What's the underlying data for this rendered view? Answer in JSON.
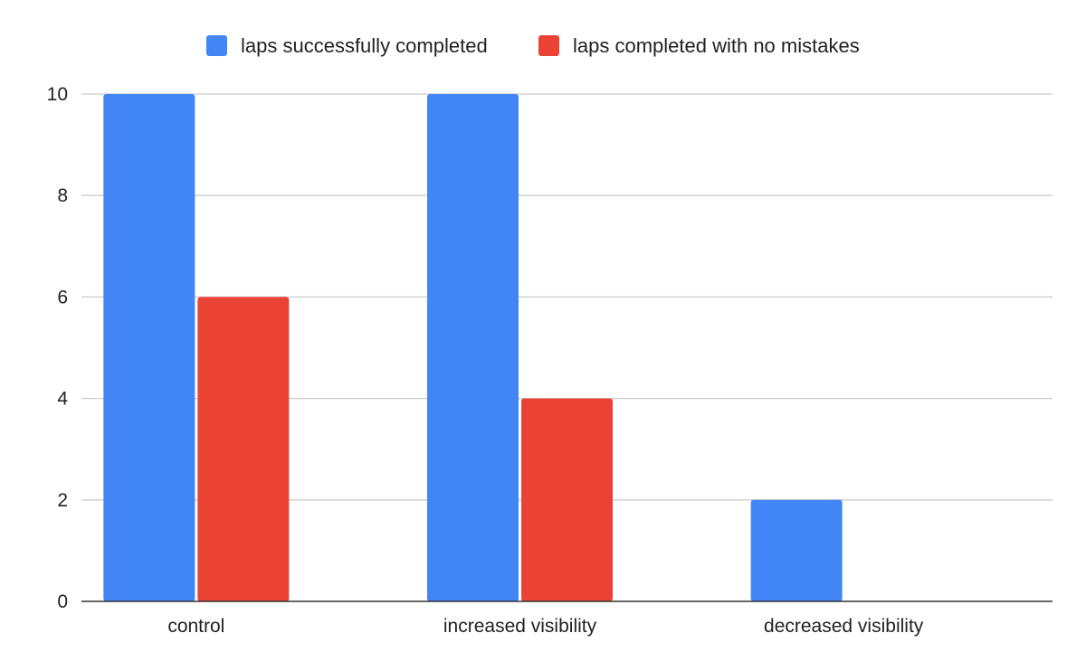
{
  "chart_data": {
    "type": "bar",
    "categories": [
      "control",
      "increased visibility",
      "decreased visibility"
    ],
    "series": [
      {
        "name": "laps successfully completed",
        "values": [
          10,
          10,
          2
        ],
        "color": "#4285f4"
      },
      {
        "name": "laps completed with no mistakes",
        "values": [
          6,
          4,
          0
        ],
        "color": "#ea4335"
      }
    ],
    "title": "",
    "xlabel": "",
    "ylabel": "",
    "ylim": [
      0,
      10
    ],
    "yticks": [
      "0",
      "2",
      "4",
      "6",
      "8",
      "10"
    ],
    "grid": true,
    "legend_position": "top-center"
  }
}
